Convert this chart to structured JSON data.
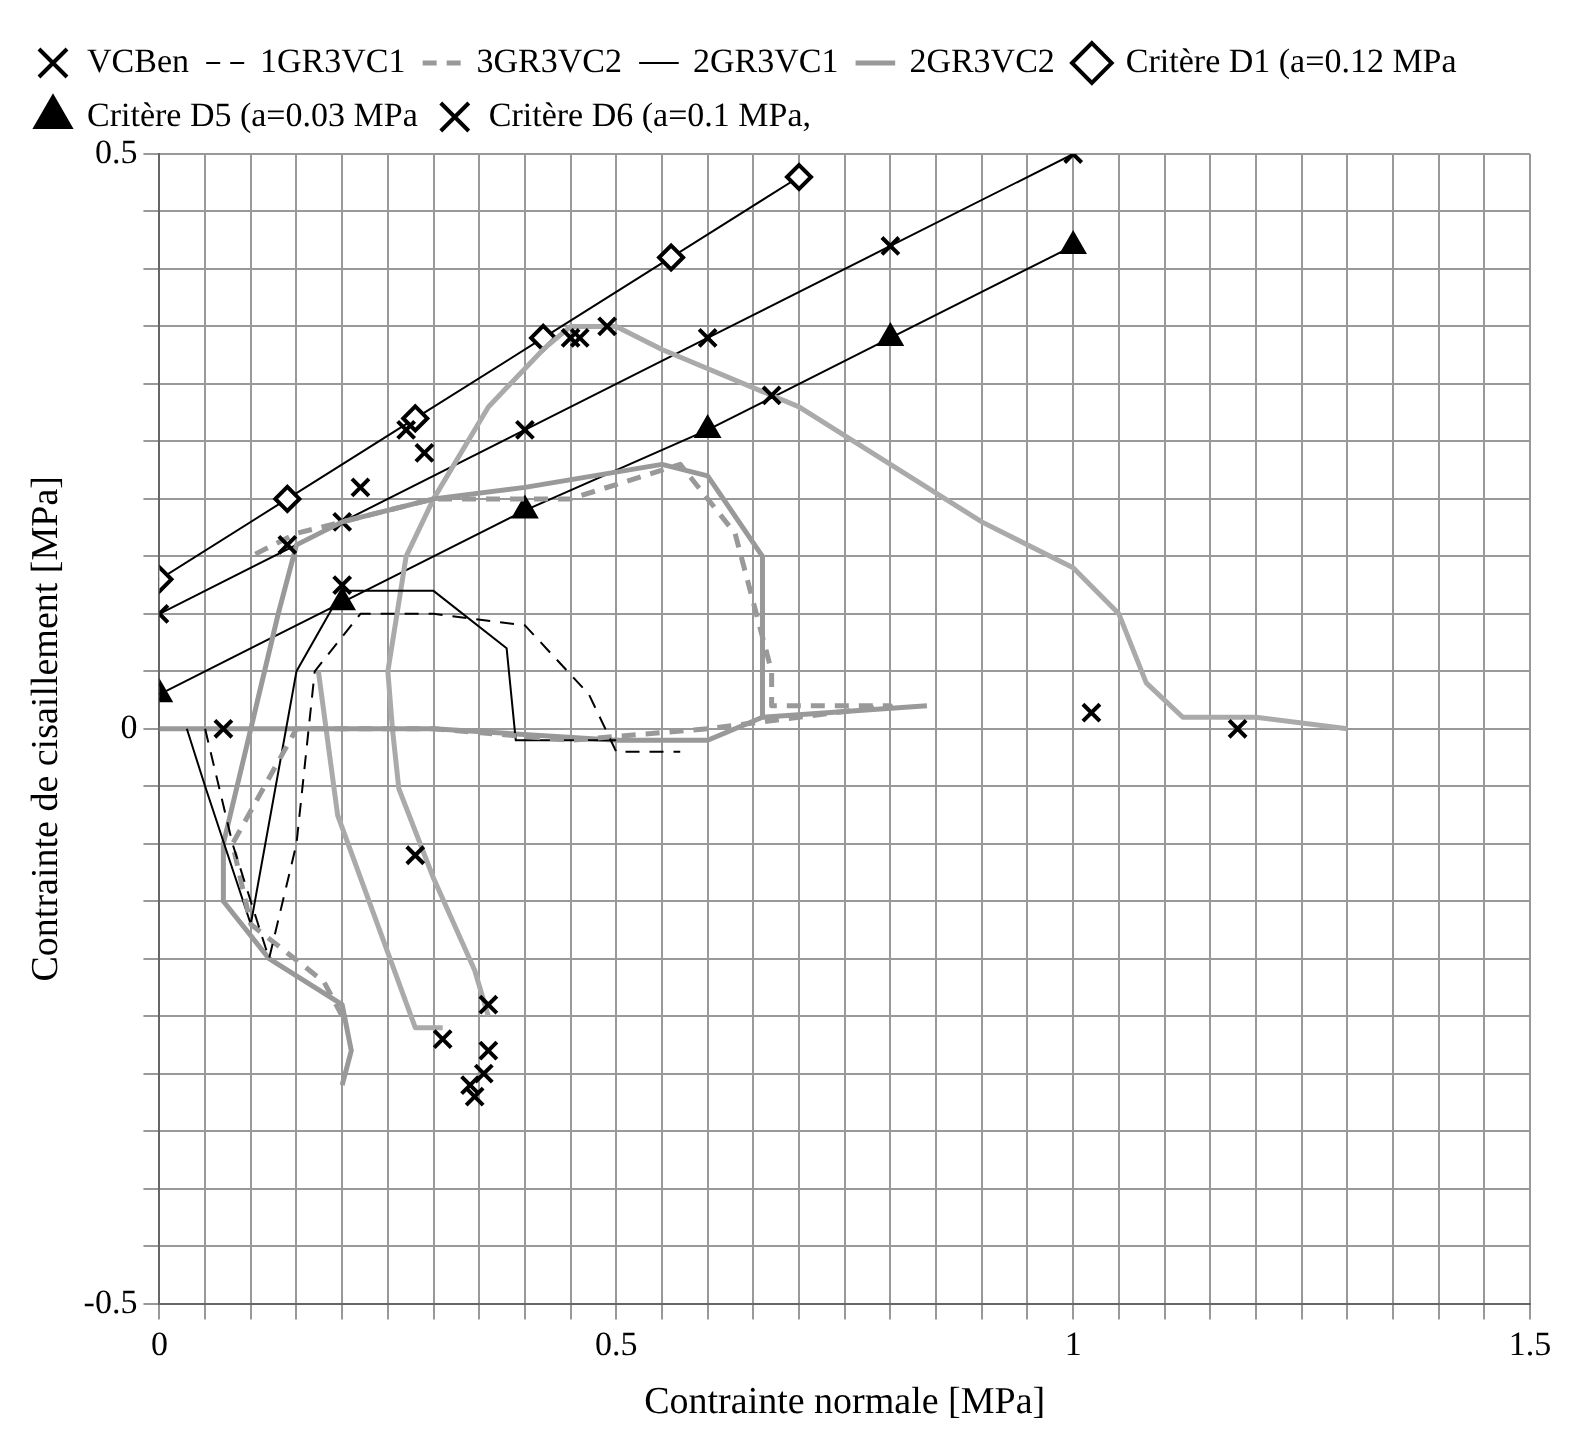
{
  "chart_data": {
    "type": "line",
    "xlabel": "Contrainte normale [MPa]",
    "ylabel": "Contrainte de cisaillement [MPa]",
    "xlim": [
      0,
      1.5
    ],
    "ylim": [
      -0.5,
      0.5
    ],
    "xticks": [
      0,
      {
        "value": 0.05,
        "label": null
      },
      {
        "value": 0.1,
        "label": null
      },
      {
        "value": 0.15,
        "label": null
      },
      {
        "value": 0.2,
        "label": null
      },
      {
        "value": 0.25,
        "label": null
      },
      {
        "value": 0.3,
        "label": null
      },
      {
        "value": 0.35,
        "label": null
      },
      {
        "value": 0.4,
        "label": null
      },
      {
        "value": 0.45,
        "label": null
      },
      0.5,
      {
        "value": 0.55,
        "label": null
      },
      {
        "value": 0.6,
        "label": null
      },
      {
        "value": 0.65,
        "label": null
      },
      {
        "value": 0.7,
        "label": null
      },
      {
        "value": 0.75,
        "label": null
      },
      {
        "value": 0.8,
        "label": null
      },
      {
        "value": 0.85,
        "label": null
      },
      {
        "value": 0.9,
        "label": null
      },
      {
        "value": 0.95,
        "label": null
      },
      1,
      {
        "value": 1.05,
        "label": null
      },
      {
        "value": 1.1,
        "label": null
      },
      {
        "value": 1.15,
        "label": null
      },
      {
        "value": 1.2,
        "label": null
      },
      {
        "value": 1.25,
        "label": null
      },
      {
        "value": 1.3,
        "label": null
      },
      {
        "value": 1.35,
        "label": null
      },
      {
        "value": 1.4,
        "label": null
      },
      {
        "value": 1.45,
        "label": null
      },
      1.5
    ],
    "yticks": [
      -0.5,
      {
        "value": -0.45,
        "label": null
      },
      {
        "value": -0.4,
        "label": null
      },
      {
        "value": -0.35,
        "label": null
      },
      {
        "value": -0.3,
        "label": null
      },
      {
        "value": -0.25,
        "label": null
      },
      {
        "value": -0.2,
        "label": null
      },
      {
        "value": -0.15,
        "label": null
      },
      {
        "value": -0.1,
        "label": null
      },
      {
        "value": -0.05,
        "label": null
      },
      0,
      {
        "value": 0.05,
        "label": null
      },
      {
        "value": 0.1,
        "label": null
      },
      {
        "value": 0.15,
        "label": null
      },
      {
        "value": 0.2,
        "label": null
      },
      {
        "value": 0.25,
        "label": null
      },
      {
        "value": 0.3,
        "label": null
      },
      {
        "value": 0.35,
        "label": null
      },
      {
        "value": 0.4,
        "label": null
      },
      {
        "value": 0.45,
        "label": null
      },
      0.5
    ],
    "grid": true,
    "legend": "top left",
    "series": [
      {
        "name": "VCBen",
        "type": "scatter",
        "marker": "cross",
        "color": "#000000",
        "x": [
          0.07,
          0.14,
          0.2,
          0.22,
          0.27,
          0.29,
          0.45,
          0.46,
          0.49,
          0.67,
          1.02,
          1.18,
          0.28,
          0.36,
          0.31,
          0.36,
          0.34,
          0.355,
          0.345
        ],
        "values": [
          0,
          0.16,
          0.125,
          0.21,
          0.26,
          0.24,
          0.34,
          0.34,
          0.35,
          0.29,
          0.014,
          0,
          -0.11,
          -0.24,
          -0.27,
          -0.28,
          -0.31,
          -0.3,
          -0.32
        ]
      },
      {
        "name": "1GR3VC1",
        "type": "line",
        "marker": "none",
        "line_style": "dashed",
        "color": "#000000",
        "x": [
          0.05,
          0.08,
          0.12,
          0.15,
          0.17,
          0.22,
          0.3,
          0.4,
          0.47,
          0.5,
          0.57
        ],
        "values": [
          0,
          -0.1,
          -0.2,
          -0.1,
          0.05,
          0.1,
          0.1,
          0.09,
          0.03,
          -0.02,
          -0.02
        ]
      },
      {
        "name": "3GR3VC2",
        "type": "line",
        "marker": "none",
        "line_style": "dashed",
        "color": "#999999",
        "x": [
          0.2,
          0.18,
          0.1,
          0.08,
          0.15,
          0.3,
          0.45,
          0.6,
          0.8,
          0.67,
          0.67,
          0.63,
          0.57,
          0.45,
          0.3,
          0.15,
          0.1
        ],
        "values": [
          -0.25,
          -0.22,
          -0.17,
          -0.1,
          0,
          0,
          -0.01,
          0,
          0.02,
          0.02,
          0.05,
          0.17,
          0.23,
          0.2,
          0.2,
          0.17,
          0.15
        ]
      },
      {
        "name": "2GR3VC1",
        "type": "line",
        "marker": "none",
        "line_style": "solid",
        "color": "#000000",
        "x": [
          0.03,
          0.05,
          0.1,
          0.15,
          0.2,
          0.3,
          0.38,
          0.39,
          0.5
        ],
        "values": [
          0,
          -0.05,
          -0.17,
          0.05,
          0.12,
          0.12,
          0.07,
          -0.01,
          -0.01
        ]
      },
      {
        "name": "2GR3VC2",
        "type": "line",
        "marker": "none",
        "line_style": "solid",
        "color": "#999999",
        "x": [
          0,
          0.3,
          0.5,
          0.6,
          0.66,
          0.66,
          0.6,
          0.55,
          0.4,
          0.3,
          0.2,
          0.15,
          0.13,
          0.1,
          0.07,
          0.07,
          0.12,
          0.2,
          0.21,
          0.2
        ],
        "values": [
          0,
          0,
          -0.01,
          -0.01,
          0.01,
          0.15,
          0.22,
          0.23,
          0.21,
          0.2,
          0.18,
          0.16,
          0.1,
          0,
          -0.1,
          -0.15,
          -0.2,
          -0.24,
          -0.28,
          -0.31
        ]
      },
      {
        "type": "line",
        "marker": "none",
        "line_style": "solid",
        "color": "#999999",
        "x": [
          0.66,
          0.84
        ],
        "values": [
          0.01,
          0.02
        ]
      },
      {
        "type": "line",
        "marker": "none",
        "line_style": "solid",
        "color": "#aaaaaa",
        "x": [
          0.36,
          0.345,
          0.3,
          0.262,
          0.255,
          0.25,
          0.27,
          0.3,
          0.36,
          0.42,
          0.45,
          0.5,
          0.55,
          0.7,
          0.9,
          1.0,
          1.05,
          1.08,
          1.12,
          1.2,
          1.3
        ],
        "values": [
          -0.25,
          -0.21,
          -0.13,
          -0.052,
          0,
          0.05,
          0.15,
          0.2,
          0.28,
          0.33,
          0.35,
          0.35,
          0.33,
          0.28,
          0.18,
          0.14,
          0.1,
          0.04,
          0.01,
          0.01,
          0
        ]
      },
      {
        "type": "line",
        "marker": "none",
        "line_style": "solid",
        "color": "#aaaaaa",
        "x": [
          0.31,
          0.28,
          0.195,
          0.174
        ],
        "values": [
          -0.26,
          -0.26,
          -0.075,
          0.05
        ]
      },
      {
        "name": "Critère D1 (a=0.12 MPa",
        "type": "line",
        "marker": "diamond",
        "line_style": "solid",
        "color": "#000000",
        "x": [
          0,
          0.14,
          0.28,
          0.42,
          0.56,
          0.7
        ],
        "values": [
          0.13,
          0.2,
          0.27,
          0.34,
          0.41,
          0.48
        ]
      },
      {
        "name": "Critère D5 (a=0.03 MPa",
        "type": "line",
        "marker": "triangle",
        "line_style": "solid",
        "color": "#000000",
        "x": [
          0,
          0.2,
          0.4,
          0.6,
          0.8,
          1.0
        ],
        "values": [
          0.03,
          0.11,
          0.19,
          0.26,
          0.34,
          0.42
        ]
      },
      {
        "name": "Critère D6 (a=0.1 MPa,",
        "type": "line",
        "marker": "cross",
        "line_style": "solid",
        "color": "#000000",
        "x": [
          0,
          0.2,
          0.4,
          0.6,
          0.8,
          1.0
        ],
        "values": [
          0.1,
          0.18,
          0.26,
          0.34,
          0.42,
          0.5
        ]
      }
    ]
  }
}
